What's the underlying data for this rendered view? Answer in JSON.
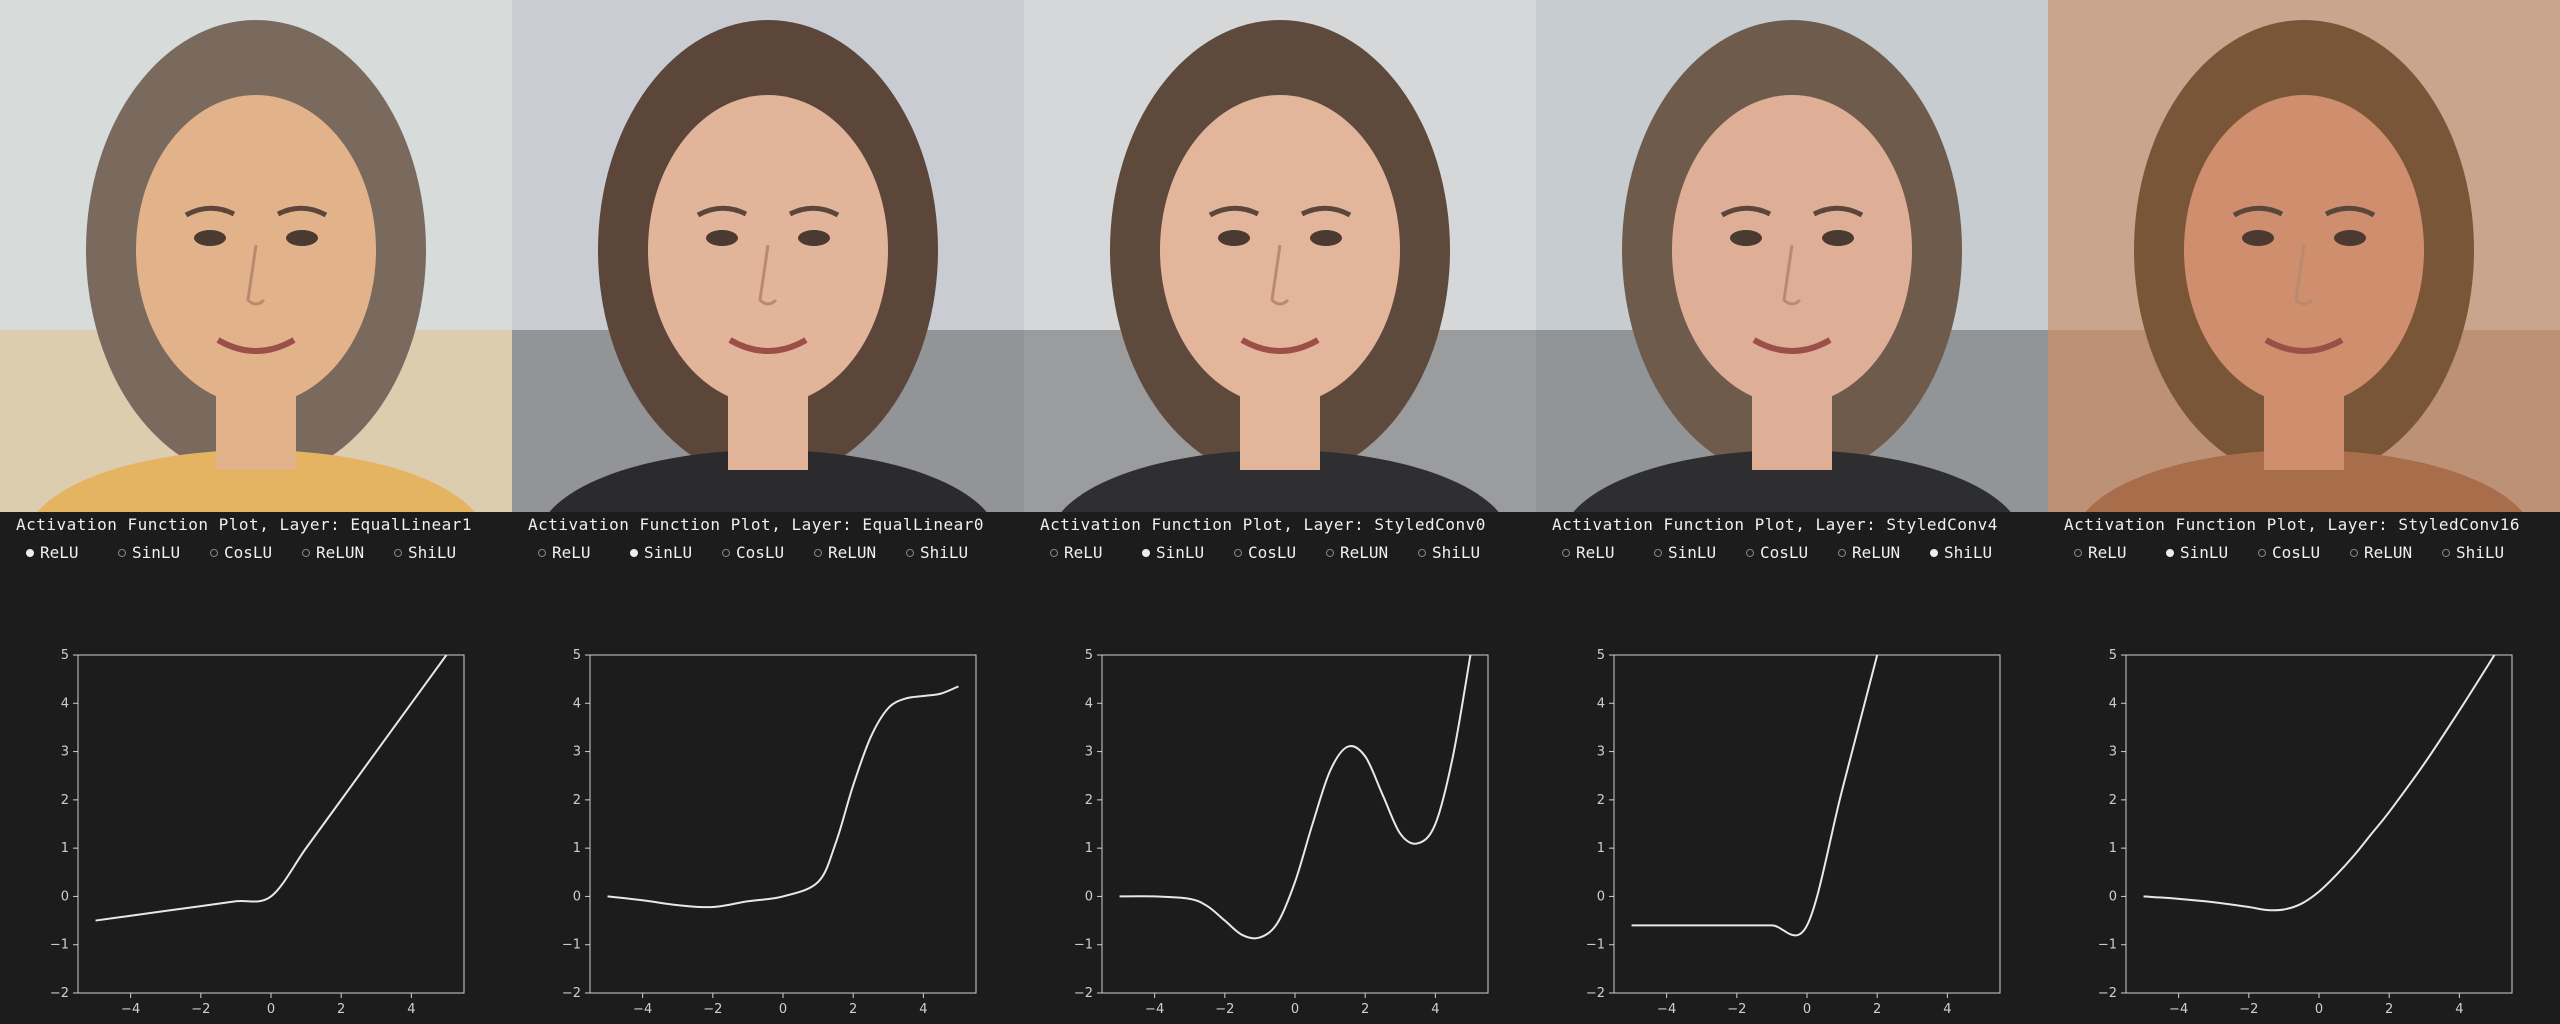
{
  "options": [
    "ReLU",
    "SinLU",
    "CosLU",
    "ReLUN",
    "ShiLU"
  ],
  "colors": {
    "background": "#1c1c1c",
    "text": "#f0f0f0",
    "axis": "#cfcfcf",
    "curve": "#e8e8e8"
  },
  "panels": [
    {
      "title": "Activation Function Plot, Layer: EqualLinear1",
      "selected": "ReLU",
      "face": {
        "bg": "#d7dbd9",
        "skin": "#e2b28a",
        "hair": "#7a6a5e",
        "shirt": "#e4b462"
      }
    },
    {
      "title": "Activation Function Plot, Layer: EqualLinear0",
      "selected": "SinLU",
      "face": {
        "bg": "#c9ccd2",
        "skin": "#e2b49a",
        "hair": "#5b4639",
        "shirt": "#2b2b2e"
      }
    },
    {
      "title": "Activation Function Plot, Layer: StyledConv0",
      "selected": "SinLU",
      "face": {
        "bg": "#d6d7d8",
        "skin": "#e3b69c",
        "hair": "#5d4a3d",
        "shirt": "#2f2f32"
      }
    },
    {
      "title": "Activation Function Plot, Layer: StyledConv4",
      "selected": "ShiLU",
      "face": {
        "bg": "#c6ccd0",
        "skin": "#dfae96",
        "hair": "#6f5b4b",
        "shirt": "#2e2e30"
      }
    },
    {
      "title": "Activation Function Plot, Layer: StyledConv16",
      "selected": "SinLU",
      "face": {
        "bg": "#c8a58c",
        "skin": "#cf8e6e",
        "hair": "#7a5638",
        "shirt": "#a86e4b"
      }
    }
  ],
  "chart_data": [
    {
      "type": "line",
      "xlim": [
        -5.5,
        5.5
      ],
      "ylim": [
        -2,
        5
      ],
      "xticks": [
        -4,
        -2,
        0,
        2,
        4
      ],
      "yticks": [
        -2,
        -1,
        0,
        1,
        2,
        3,
        4,
        5
      ],
      "x": [
        -5,
        -4,
        -3,
        -2,
        -1,
        0,
        1,
        2,
        3,
        4,
        5
      ],
      "y": [
        -0.5,
        -0.4,
        -0.3,
        -0.2,
        -0.1,
        0.0,
        1.0,
        2.0,
        3.0,
        4.0,
        5.0
      ]
    },
    {
      "type": "line",
      "xlim": [
        -5.5,
        5.5
      ],
      "ylim": [
        -2,
        5
      ],
      "xticks": [
        -4,
        -2,
        0,
        2,
        4
      ],
      "yticks": [
        -2,
        -1,
        0,
        1,
        2,
        3,
        4,
        5
      ],
      "x": [
        -5,
        -4,
        -3,
        -2,
        -1,
        0,
        1,
        1.5,
        2,
        2.5,
        3,
        3.5,
        4,
        4.5,
        5
      ],
      "y": [
        0.0,
        -0.08,
        -0.18,
        -0.22,
        -0.1,
        0.0,
        0.3,
        1.1,
        2.3,
        3.3,
        3.9,
        4.1,
        4.15,
        4.2,
        4.35
      ]
    },
    {
      "type": "line",
      "xlim": [
        -5.5,
        5.5
      ],
      "ylim": [
        -2,
        5
      ],
      "xticks": [
        -4,
        -2,
        0,
        2,
        4
      ],
      "yticks": [
        -2,
        -1,
        0,
        1,
        2,
        3,
        4,
        5
      ],
      "x": [
        -5,
        -4,
        -3,
        -2.5,
        -2,
        -1.5,
        -1,
        -0.5,
        0,
        0.5,
        1,
        1.5,
        2,
        2.5,
        3,
        3.5,
        4,
        4.5,
        5
      ],
      "y": [
        0.0,
        0.0,
        -0.05,
        -0.2,
        -0.5,
        -0.8,
        -0.85,
        -0.55,
        0.3,
        1.5,
        2.6,
        3.1,
        2.9,
        2.1,
        1.3,
        1.1,
        1.5,
        2.9,
        5.0
      ]
    },
    {
      "type": "line",
      "xlim": [
        -5.5,
        5.5
      ],
      "ylim": [
        -2,
        5
      ],
      "xticks": [
        -4,
        -2,
        0,
        2,
        4
      ],
      "yticks": [
        -2,
        -1,
        0,
        1,
        2,
        3,
        4,
        5
      ],
      "x": [
        -5,
        -4,
        -3,
        -2,
        -1,
        0,
        1,
        2
      ],
      "y": [
        -0.6,
        -0.6,
        -0.6,
        -0.6,
        -0.6,
        -0.6,
        2.2,
        5.0
      ]
    },
    {
      "type": "line",
      "xlim": [
        -5.5,
        5.5
      ],
      "ylim": [
        -2,
        5
      ],
      "xticks": [
        -4,
        -2,
        0,
        2,
        4
      ],
      "yticks": [
        -2,
        -1,
        0,
        1,
        2,
        3,
        4,
        5
      ],
      "x": [
        -5,
        -4,
        -3,
        -2,
        -1.5,
        -1,
        -0.5,
        0,
        0.5,
        1,
        1.5,
        2,
        3,
        4,
        5
      ],
      "y": [
        0.0,
        -0.05,
        -0.12,
        -0.22,
        -0.28,
        -0.27,
        -0.15,
        0.1,
        0.45,
        0.85,
        1.3,
        1.75,
        2.75,
        3.85,
        5.0
      ]
    }
  ]
}
